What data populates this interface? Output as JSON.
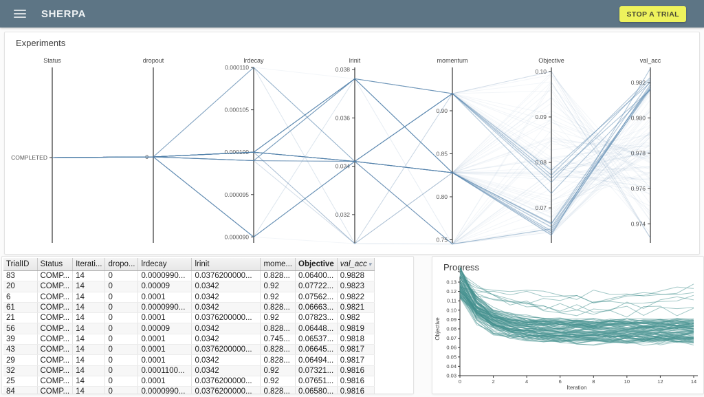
{
  "header": {
    "title": "SHERPA",
    "stop_button_label": "STOP A TRIAL",
    "bar_color": "#5d7585",
    "button_color": "#eef25c"
  },
  "experiments_panel": {
    "title": "Experiments"
  },
  "progress_panel": {
    "title": "Progress"
  },
  "chart_data": [
    {
      "type": "parallel-coordinates",
      "title": "Experiments",
      "line_color": "#4f81ab",
      "axes": [
        {
          "name": "Status",
          "x": 69,
          "kind": "category",
          "categories": [
            {
              "label": "COMPLETED",
              "y": 182
            }
          ]
        },
        {
          "name": "dropout",
          "x": 216,
          "kind": "category",
          "categories": [
            {
              "label": "0",
              "y": 181
            }
          ]
        },
        {
          "name": "lrdecay",
          "x": 362,
          "kind": "linear",
          "v_top": 0.00011,
          "v_bottom": 8.93e-05,
          "ticks": [
            0.00011,
            0.000105,
            0.0001,
            9.5e-05,
            9e-05
          ],
          "tick_labels": [
            "0.000110",
            "0.000105",
            "0.000100",
            "0.000095",
            "0.000090"
          ]
        },
        {
          "name": "lrinit",
          "x": 509,
          "kind": "linear",
          "v_top": 0.03809,
          "v_bottom": 0.03083,
          "ticks": [
            0.038,
            0.036,
            0.034,
            0.032
          ],
          "tick_labels": [
            "0.038",
            "0.036",
            "0.034",
            "0.032"
          ]
        },
        {
          "name": "momentum",
          "x": 651,
          "kind": "linear",
          "v_top": 0.9504,
          "v_bottom": 0.7464,
          "ticks": [
            0.9,
            0.85,
            0.8,
            0.75
          ],
          "tick_labels": [
            "0.90",
            "0.85",
            "0.80",
            "0.75"
          ]
        },
        {
          "name": "Objective",
          "x": 795,
          "kind": "linear",
          "v_top": 0.1009,
          "v_bottom": 0.0623,
          "ticks": [
            0.1,
            0.09,
            0.08,
            0.07
          ],
          "tick_labels": [
            "0.10",
            "0.09",
            "0.08",
            "0.07"
          ]
        },
        {
          "name": "val_acc",
          "x": 939,
          "kind": "linear",
          "v_top": 0.98286,
          "v_bottom": 0.97292,
          "ticks": [
            0.982,
            0.98,
            0.978,
            0.976,
            0.974
          ],
          "tick_labels": [
            "0.982",
            "0.980",
            "0.978",
            "0.976",
            "0.974"
          ]
        }
      ],
      "highlighted_trials": [
        {
          "status": "COMPLETED",
          "dropout": 0,
          "lrdecay": 9.9e-05,
          "lrinit": 0.03762,
          "momentum": 0.828,
          "objective": 0.064,
          "val_acc": 0.9828
        },
        {
          "status": "COMPLETED",
          "dropout": 0,
          "lrdecay": 9e-05,
          "lrinit": 0.0342,
          "momentum": 0.92,
          "objective": 0.07722,
          "val_acc": 0.9823
        },
        {
          "status": "COMPLETED",
          "dropout": 0,
          "lrdecay": 0.0001,
          "lrinit": 0.0342,
          "momentum": 0.92,
          "objective": 0.07562,
          "val_acc": 0.9822
        },
        {
          "status": "COMPLETED",
          "dropout": 0,
          "lrdecay": 9.9e-05,
          "lrinit": 0.0342,
          "momentum": 0.828,
          "objective": 0.06663,
          "val_acc": 0.9821
        },
        {
          "status": "COMPLETED",
          "dropout": 0,
          "lrdecay": 0.0001,
          "lrinit": 0.03762,
          "momentum": 0.92,
          "objective": 0.07823,
          "val_acc": 0.982
        },
        {
          "status": "COMPLETED",
          "dropout": 0,
          "lrdecay": 9e-05,
          "lrinit": 0.0342,
          "momentum": 0.828,
          "objective": 0.06448,
          "val_acc": 0.9819
        },
        {
          "status": "COMPLETED",
          "dropout": 0,
          "lrdecay": 0.0001,
          "lrinit": 0.0342,
          "momentum": 0.745,
          "objective": 0.06537,
          "val_acc": 0.9818
        },
        {
          "status": "COMPLETED",
          "dropout": 0,
          "lrdecay": 0.0001,
          "lrinit": 0.03762,
          "momentum": 0.828,
          "objective": 0.06645,
          "val_acc": 0.9817
        },
        {
          "status": "COMPLETED",
          "dropout": 0,
          "lrdecay": 0.0001,
          "lrinit": 0.0342,
          "momentum": 0.828,
          "objective": 0.06494,
          "val_acc": 0.9817
        },
        {
          "status": "COMPLETED",
          "dropout": 0,
          "lrdecay": 0.00011,
          "lrinit": 0.0342,
          "momentum": 0.92,
          "objective": 0.07321,
          "val_acc": 0.9816
        },
        {
          "status": "COMPLETED",
          "dropout": 0,
          "lrdecay": 0.0001,
          "lrinit": 0.03762,
          "momentum": 0.92,
          "objective": 0.07651,
          "val_acc": 0.9816
        },
        {
          "status": "COMPLETED",
          "dropout": 0,
          "lrdecay": 9.9e-05,
          "lrinit": 0.03762,
          "momentum": 0.828,
          "objective": 0.0658,
          "val_acc": 0.9816
        }
      ],
      "background_trials": {
        "count": 85,
        "status": "COMPLETED",
        "dropout": 0,
        "lrdecay_values": [
          0.0001,
          9.9e-05,
          9e-05,
          0.00011
        ],
        "lrinit_values": [
          0.0342,
          0.03762,
          0.0308
        ],
        "momentum_values": [
          0.828,
          0.92,
          0.745
        ],
        "objective_range": [
          0.064,
          0.1
        ],
        "val_acc_range": [
          0.9732,
          0.9828
        ]
      }
    },
    {
      "type": "line",
      "title": "Progress",
      "xlabel": "Iteration",
      "ylabel": "Objective",
      "xlim": [
        0,
        14
      ],
      "ylim": [
        0.03,
        0.135
      ],
      "xticks": [
        0,
        2,
        4,
        6,
        8,
        10,
        12,
        14
      ],
      "yticks": [
        0.03,
        0.04,
        0.05,
        0.06,
        0.07,
        0.08,
        0.09,
        0.1,
        0.11,
        0.12,
        0.13
      ],
      "series_color": "#46918f",
      "series_summary": {
        "count": 95,
        "start_value_range": [
          0.112,
          0.146
        ],
        "converged_value_range": [
          0.065,
          0.089
        ],
        "outlier_count": 7,
        "outlier_end_range": [
          0.095,
          0.12
        ],
        "shape": "exponential-decay-with-noise"
      }
    }
  ],
  "trials_table": {
    "columns": [
      {
        "label": "TrialID",
        "width": 49
      },
      {
        "label": "Status",
        "width": 48
      },
      {
        "label": "Iterati...",
        "width": 47
      },
      {
        "label": "dropo...",
        "width": 48
      },
      {
        "label": "lrdecay",
        "width": 78
      },
      {
        "label": "lrinit",
        "width": 100
      },
      {
        "label": "mome...",
        "width": 47
      },
      {
        "label": "Objective",
        "width": 57,
        "bold": true
      },
      {
        "label": "val_acc",
        "width": 46,
        "italic": true,
        "sort": "desc"
      }
    ],
    "rows": [
      [
        "83",
        "COMP...",
        "14",
        "0",
        "0.0000990...",
        "0.0376200000...",
        "0.828...",
        "0.06400...",
        "0.9828"
      ],
      [
        "20",
        "COMP...",
        "14",
        "0",
        "0.00009",
        "0.0342",
        "0.92",
        "0.07722...",
        "0.9823"
      ],
      [
        "6",
        "COMP...",
        "14",
        "0",
        "0.0001",
        "0.0342",
        "0.92",
        "0.07562...",
        "0.9822"
      ],
      [
        "61",
        "COMP...",
        "14",
        "0",
        "0.0000990...",
        "0.0342",
        "0.828...",
        "0.06663...",
        "0.9821"
      ],
      [
        "21",
        "COMP...",
        "14",
        "0",
        "0.0001",
        "0.0376200000...",
        "0.92",
        "0.07823...",
        "0.982"
      ],
      [
        "56",
        "COMP...",
        "14",
        "0",
        "0.00009",
        "0.0342",
        "0.828...",
        "0.06448...",
        "0.9819"
      ],
      [
        "39",
        "COMP...",
        "14",
        "0",
        "0.0001",
        "0.0342",
        "0.745...",
        "0.06537...",
        "0.9818"
      ],
      [
        "43",
        "COMP...",
        "14",
        "0",
        "0.0001",
        "0.0376200000...",
        "0.828...",
        "0.06645...",
        "0.9817"
      ],
      [
        "29",
        "COMP...",
        "14",
        "0",
        "0.0001",
        "0.0342",
        "0.828...",
        "0.06494...",
        "0.9817"
      ],
      [
        "32",
        "COMP...",
        "14",
        "0",
        "0.0001100...",
        "0.0342",
        "0.92",
        "0.07321...",
        "0.9816"
      ],
      [
        "25",
        "COMP...",
        "14",
        "0",
        "0.0001",
        "0.0376200000...",
        "0.92",
        "0.07651...",
        "0.9816"
      ],
      [
        "84",
        "COMP...",
        "14",
        "0",
        "0.0000990...",
        "0.0376200000...",
        "0.828...",
        "0.06580...",
        "0.9816"
      ]
    ]
  }
}
